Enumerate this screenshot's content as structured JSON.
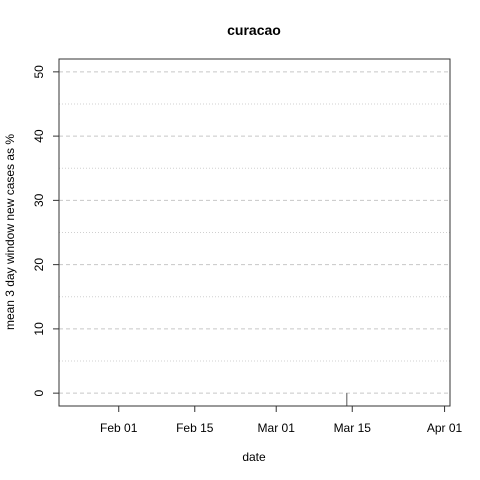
{
  "chart_data": {
    "type": "line",
    "title": "curacao",
    "xlabel": "date",
    "ylabel": "mean  3  day window new cases as %",
    "x_ticks": [
      "Feb 01",
      "Feb 15",
      "Mar 01",
      "Mar 15",
      "Apr 01"
    ],
    "y_ticks": [
      "0",
      "10",
      "20",
      "30",
      "40",
      "50"
    ],
    "xlim": [
      "2020-01-21",
      "2020-04-02"
    ],
    "ylim": [
      -2,
      52
    ],
    "grid": true,
    "series": [
      {
        "color": "#555555",
        "points": [
          {
            "x": "2020-01-21",
            "y": 50
          },
          {
            "x": "2020-01-21",
            "y": 52
          },
          {
            "x": "2020-03-14",
            "y": 0
          },
          {
            "x": "2020-03-14",
            "y": -2
          }
        ]
      }
    ]
  }
}
